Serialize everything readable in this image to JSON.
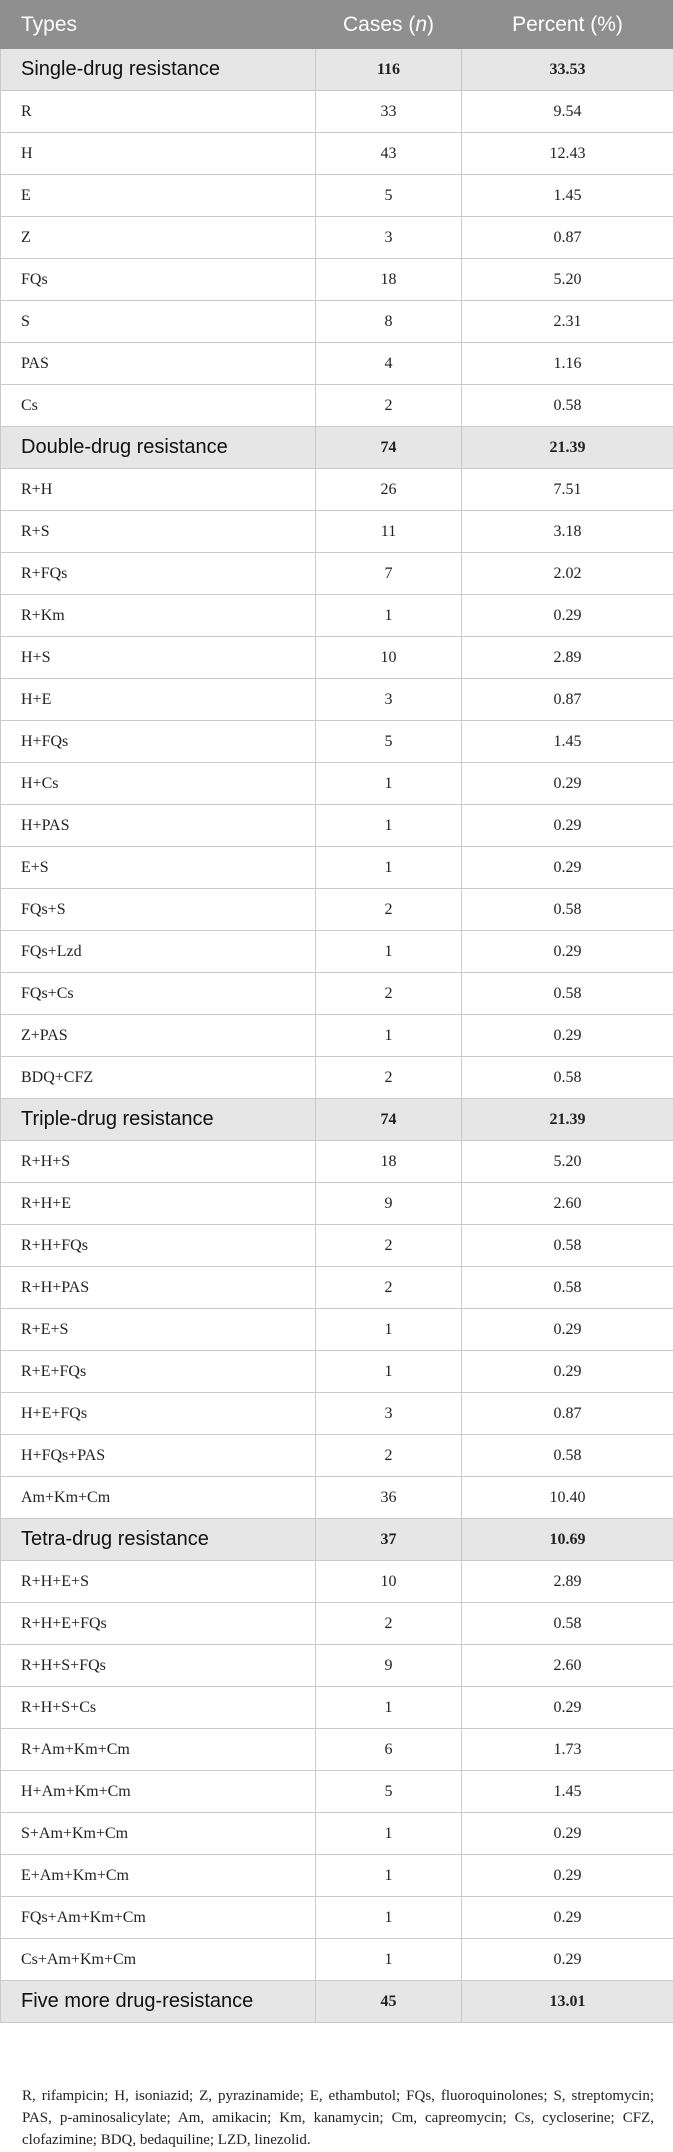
{
  "header": {
    "types": "Types",
    "cases": "Cases (",
    "cases_n": "n",
    "cases_close": ")",
    "percent": "Percent (%)"
  },
  "groups": [
    {
      "label": "Single-drug resistance",
      "cases": "116",
      "percent": "33.53",
      "rows": [
        {
          "type": "R",
          "cases": "33",
          "percent": "9.54"
        },
        {
          "type": "H",
          "cases": "43",
          "percent": "12.43"
        },
        {
          "type": "E",
          "cases": "5",
          "percent": "1.45"
        },
        {
          "type": "Z",
          "cases": "3",
          "percent": "0.87"
        },
        {
          "type": "FQs",
          "cases": "18",
          "percent": "5.20"
        },
        {
          "type": "S",
          "cases": "8",
          "percent": "2.31"
        },
        {
          "type": "PAS",
          "cases": "4",
          "percent": "1.16"
        },
        {
          "type": "Cs",
          "cases": "2",
          "percent": "0.58"
        }
      ]
    },
    {
      "label": "Double-drug resistance",
      "cases": "74",
      "percent": "21.39",
      "rows": [
        {
          "type": "R+H",
          "cases": "26",
          "percent": "7.51"
        },
        {
          "type": "R+S",
          "cases": "11",
          "percent": "3.18"
        },
        {
          "type": "R+FQs",
          "cases": "7",
          "percent": "2.02"
        },
        {
          "type": "R+Km",
          "cases": "1",
          "percent": "0.29"
        },
        {
          "type": "H+S",
          "cases": "10",
          "percent": "2.89"
        },
        {
          "type": "H+E",
          "cases": "3",
          "percent": "0.87"
        },
        {
          "type": "H+FQs",
          "cases": "5",
          "percent": "1.45"
        },
        {
          "type": "H+Cs",
          "cases": "1",
          "percent": "0.29"
        },
        {
          "type": "H+PAS",
          "cases": "1",
          "percent": "0.29"
        },
        {
          "type": "E+S",
          "cases": "1",
          "percent": "0.29"
        },
        {
          "type": "FQs+S",
          "cases": "2",
          "percent": "0.58"
        },
        {
          "type": "FQs+Lzd",
          "cases": "1",
          "percent": "0.29"
        },
        {
          "type": "FQs+Cs",
          "cases": "2",
          "percent": "0.58"
        },
        {
          "type": "Z+PAS",
          "cases": "1",
          "percent": "0.29"
        },
        {
          "type": "BDQ+CFZ",
          "cases": "2",
          "percent": "0.58"
        }
      ]
    },
    {
      "label": "Triple-drug resistance",
      "cases": "74",
      "percent": "21.39",
      "rows": [
        {
          "type": "R+H+S",
          "cases": "18",
          "percent": "5.20"
        },
        {
          "type": "R+H+E",
          "cases": "9",
          "percent": "2.60"
        },
        {
          "type": "R+H+FQs",
          "cases": "2",
          "percent": "0.58"
        },
        {
          "type": "R+H+PAS",
          "cases": "2",
          "percent": "0.58"
        },
        {
          "type": "R+E+S",
          "cases": "1",
          "percent": "0.29"
        },
        {
          "type": "R+E+FQs",
          "cases": "1",
          "percent": "0.29"
        },
        {
          "type": "H+E+FQs",
          "cases": "3",
          "percent": "0.87"
        },
        {
          "type": "H+FQs+PAS",
          "cases": "2",
          "percent": "0.58"
        },
        {
          "type": "Am+Km+Cm",
          "cases": "36",
          "percent": "10.40"
        }
      ]
    },
    {
      "label": "Tetra-drug resistance",
      "cases": "37",
      "percent": "10.69",
      "rows": [
        {
          "type": "R+H+E+S",
          "cases": "10",
          "percent": "2.89"
        },
        {
          "type": "R+H+E+FQs",
          "cases": "2",
          "percent": "0.58"
        },
        {
          "type": "R+H+S+FQs",
          "cases": "9",
          "percent": "2.60"
        },
        {
          "type": "R+H+S+Cs",
          "cases": "1",
          "percent": "0.29"
        },
        {
          "type": "R+Am+Km+Cm",
          "cases": "6",
          "percent": "1.73"
        },
        {
          "type": "H+Am+Km+Cm",
          "cases": "5",
          "percent": "1.45"
        },
        {
          "type": "S+Am+Km+Cm",
          "cases": "1",
          "percent": "0.29"
        },
        {
          "type": "E+Am+Km+Cm",
          "cases": "1",
          "percent": "0.29"
        },
        {
          "type": "FQs+Am+Km+Cm",
          "cases": "1",
          "percent": "0.29"
        },
        {
          "type": "Cs+Am+Km+Cm",
          "cases": "1",
          "percent": "0.29"
        }
      ]
    },
    {
      "label": "Five more drug-resistance",
      "cases": "45",
      "percent": "13.01",
      "rows": []
    }
  ],
  "footnote": "R, rifampicin; H, isoniazid; Z, pyrazinamide; E, ethambutol; FQs, fluoroquinolones; S, streptomycin; PAS, p-aminosalicylate; Am, amikacin; Km, kanamycin; Cm, capreomycin; Cs, cycloserine; CFZ, clofazimine; BDQ, bedaquiline; LZD, linezolid."
}
